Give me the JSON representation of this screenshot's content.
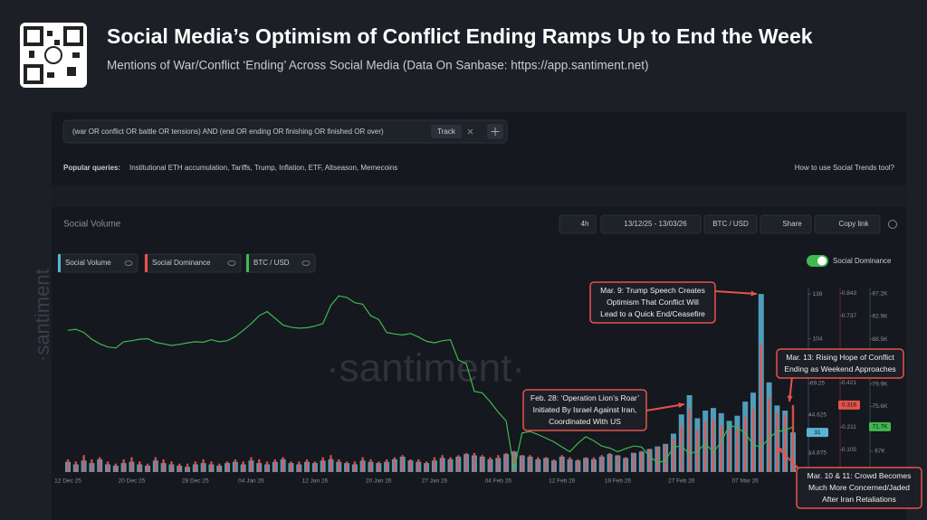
{
  "header": {
    "title": "Social Media’s Optimism of Conflict Ending Ramps Up to End the Week",
    "subtitle": "Mentions of War/Conflict ‘Ending’ Across Social Media (Data On Sanbase: https://app.santiment.net)"
  },
  "search": {
    "query": "(war OR conflict OR battle OR tensions) AND (end OR ending OR finishing OR finished OR over)",
    "button": "Track",
    "popular_label": "Popular queries:",
    "popular": "Institutional ETH accumulation, Tariffs, Trump, Inflation, ETF, Altseason, Memecoins",
    "help": "How to use Social Trends tool?"
  },
  "toolbar": {
    "section": "Social Volume",
    "interval": "4h",
    "range": "13/12/25 - 13/03/26",
    "asset": "BTC / USD",
    "share": "Share",
    "copy": "Copy link",
    "toggle": "Social Dominance"
  },
  "watermark": {
    "side": "·santiment",
    "center": "·santiment·"
  },
  "chart_data": {
    "type": "combo",
    "categories": [
      "12 Dec 25",
      null,
      null,
      null,
      null,
      null,
      null,
      null,
      "20 Dec 25",
      null,
      null,
      null,
      null,
      null,
      null,
      null,
      "28 Dec 25",
      null,
      null,
      null,
      null,
      null,
      null,
      "04 Jan 26",
      null,
      null,
      null,
      null,
      null,
      null,
      null,
      "12 Jan 26",
      null,
      null,
      null,
      null,
      null,
      null,
      null,
      "20 Jan 26",
      null,
      null,
      null,
      null,
      null,
      null,
      "27 Jan 26",
      null,
      null,
      null,
      null,
      null,
      null,
      null,
      "04 Feb 26",
      null,
      null,
      null,
      null,
      null,
      null,
      null,
      "12 Feb 26",
      null,
      null,
      null,
      null,
      null,
      null,
      "19 Feb 26",
      null,
      null,
      null,
      null,
      null,
      null,
      null,
      "27 Feb 26",
      null,
      null,
      null,
      null,
      null,
      null,
      null,
      "07 Mar 26",
      null,
      null,
      null,
      null,
      null,
      null
    ],
    "series": [
      {
        "name": "Social Volume",
        "color": "#5ab4d6",
        "axis": "y",
        "current_label": "31",
        "values": [
          8,
          6,
          9,
          7,
          10,
          6,
          5,
          7,
          8,
          6,
          5,
          9,
          7,
          6,
          5,
          4,
          6,
          7,
          6,
          5,
          7,
          8,
          6,
          9,
          7,
          6,
          8,
          10,
          7,
          6,
          8,
          7,
          9,
          10,
          8,
          7,
          6,
          9,
          8,
          7,
          8,
          10,
          12,
          9,
          8,
          7,
          9,
          11,
          10,
          12,
          14,
          13,
          12,
          10,
          11,
          14,
          16,
          13,
          12,
          10,
          11,
          9,
          12,
          10,
          9,
          11,
          10,
          12,
          14,
          13,
          11,
          15,
          16,
          18,
          20,
          22,
          30,
          45,
          60,
          42,
          48,
          50,
          46,
          40,
          44,
          55,
          62,
          139,
          70,
          52,
          48,
          31
        ]
      },
      {
        "name": "Social Dominance",
        "color": "#e5534b",
        "axis": "y2",
        "current_label": "0.316",
        "values": [
          0.06,
          0.05,
          0.08,
          0.06,
          0.07,
          0.05,
          0.04,
          0.06,
          0.07,
          0.05,
          0.04,
          0.07,
          0.06,
          0.05,
          0.04,
          0.04,
          0.05,
          0.06,
          0.05,
          0.04,
          0.05,
          0.06,
          0.05,
          0.07,
          0.06,
          0.05,
          0.06,
          0.07,
          0.05,
          0.05,
          0.06,
          0.05,
          0.07,
          0.08,
          0.06,
          0.05,
          0.05,
          0.07,
          0.06,
          0.05,
          0.06,
          0.07,
          0.08,
          0.06,
          0.06,
          0.05,
          0.07,
          0.08,
          0.07,
          0.08,
          0.09,
          0.09,
          0.08,
          0.07,
          0.08,
          0.09,
          0.1,
          0.08,
          0.08,
          0.07,
          0.07,
          0.06,
          0.08,
          0.07,
          0.06,
          0.07,
          0.07,
          0.08,
          0.09,
          0.08,
          0.07,
          0.09,
          0.1,
          0.11,
          0.12,
          0.13,
          0.16,
          0.22,
          0.3,
          0.2,
          0.24,
          0.25,
          0.22,
          0.2,
          0.21,
          0.26,
          0.3,
          0.6,
          0.35,
          0.28,
          0.27,
          0.316
        ]
      },
      {
        "name": "BTC / USD",
        "color": "#3fb950",
        "axis": "y3",
        "current_label": "71.7K",
        "values": [
          90200,
          90400,
          89800,
          88500,
          87600,
          87000,
          86800,
          88000,
          88200,
          88500,
          88600,
          87900,
          87600,
          87300,
          87500,
          87800,
          88000,
          87900,
          88400,
          88000,
          88200,
          89000,
          90200,
          91500,
          93000,
          93800,
          92500,
          91200,
          90800,
          90600,
          90700,
          91000,
          91500,
          95000,
          96800,
          96500,
          95500,
          95200,
          93000,
          92300,
          89800,
          89500,
          89300,
          89600,
          88900,
          88100,
          87800,
          88200,
          88400,
          84500,
          83800,
          78500,
          78200,
          76500,
          74500,
          72800,
          63500,
          70500,
          70800,
          70200,
          69500,
          68800,
          67800,
          66900,
          68500,
          69800,
          69000,
          68000,
          67600,
          66900,
          67500,
          68000,
          67800,
          66000,
          64800,
          65200,
          67800,
          68000,
          66500,
          67000,
          68500,
          66800,
          68800,
          72000,
          71500,
          70500,
          68200,
          67800,
          69500,
          70800,
          71000,
          71700
        ]
      }
    ],
    "ylim": [
      0,
      144
    ],
    "yticks": [
      139,
      104,
      69.25,
      44.625,
      14.875
    ],
    "y2lim": [
      0,
      0.87
    ],
    "y2ticks": [
      0.843,
      0.737,
      0.421,
      0.211,
      0.105
    ],
    "y3lim": [
      63000,
      98400
    ],
    "y3ticks": [
      {
        "value": 97200,
        "label": "97.2K"
      },
      {
        "value": 92900,
        "label": "92.9K"
      },
      {
        "value": 88500,
        "label": "88.5K"
      },
      {
        "value": 79900,
        "label": "79.9K"
      },
      {
        "value": 75600,
        "label": "75.6K"
      },
      {
        "value": 67000,
        "label": "67K"
      }
    ],
    "annotations": [
      {
        "lines": [
          "Mar. 9: Trump Speech Creates",
          "Optimism That Conflict Will",
          "Lead to a Quick End/Ceasefire"
        ]
      },
      {
        "lines": [
          "Mar. 13: Rising Hope of Conflict",
          "Ending as Weekend Approaches"
        ]
      },
      {
        "lines": [
          "Feb. 28: ‘Operation Lion’s Roar’",
          "Initiated By Israel Against Iran,",
          "Coordinated With US"
        ]
      },
      {
        "lines": [
          "Mar. 10 & 11: Crowd Becomes",
          "Much More Concerned/Jaded",
          "After Iran Retaliations"
        ]
      }
    ]
  }
}
